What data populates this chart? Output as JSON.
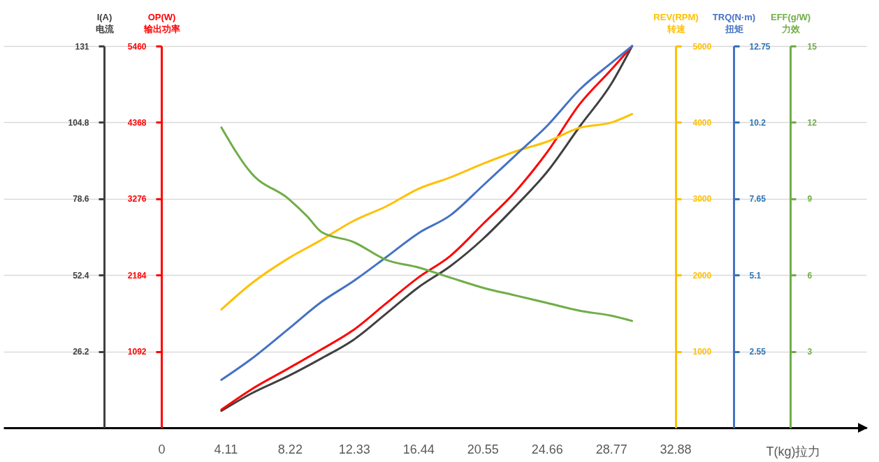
{
  "chart_data": [
    {
      "type": "line",
      "xlabel": "T(kg)拉力",
      "xlim": [
        -10.1,
        45.1
      ],
      "xticks": [
        0,
        4.11,
        8.22,
        12.33,
        16.44,
        20.55,
        24.66,
        28.77,
        32.88
      ],
      "x": [
        3.84,
        5.76,
        8.13,
        10.23,
        12.29,
        14.38,
        16.44,
        18.49,
        20.59,
        22.65,
        24.7,
        26.76,
        28.81,
        30.11
      ],
      "ylabel": "I(A)\n电流",
      "ylim": [
        0,
        131
      ],
      "yticks": [
        26.2,
        52.4,
        78.6,
        104.8,
        131
      ],
      "y2label": "OP(W)\n输出功率",
      "y2lim": [
        0,
        5460
      ],
      "y2ticks": [
        1092,
        2184,
        3276,
        4368,
        5460
      ],
      "y3label": "REV(RPM)\n转速",
      "y3lim": [
        0,
        5000
      ],
      "y3ticks": [
        1000,
        2000,
        3000,
        4000,
        5000
      ],
      "grid": "y",
      "series": [
        {
          "axis": "y",
          "color": "#404040",
          "values": [
            5.8,
            11.8,
            17.8,
            23.8,
            30.2,
            39.2,
            48.2,
            55.5,
            64.9,
            76.0,
            88.0,
            103.4,
            118.3,
            131
          ]
        },
        {
          "axis": "y2",
          "color": "#ff0000",
          "values": [
            260,
            550,
            850,
            1120,
            1400,
            1780,
            2150,
            2460,
            2920,
            3380,
            3950,
            4630,
            5130,
            5460
          ]
        },
        {
          "axis": "y3",
          "color": "#ffc000",
          "values": [
            1550,
            1890,
            2220,
            2460,
            2710,
            2900,
            3130,
            3280,
            3460,
            3620,
            3750,
            3930,
            4000,
            4110
          ]
        }
      ]
    },
    {
      "type": "line",
      "xlim": [
        -10.1,
        45.1
      ],
      "tick_labels": "y",
      "x": [
        3.84,
        5.76,
        8.13,
        10.23,
        12.29,
        14.38,
        16.44,
        18.49,
        20.59,
        22.65,
        24.7,
        26.76,
        28.81,
        30.11
      ],
      "ylabel": "TRQ(N·m)\n扭矩",
      "ylim": [
        0,
        12.75
      ],
      "yticks": [
        2.55,
        5.1,
        7.65,
        10.2,
        12.75
      ],
      "y2label": "EFF(g/W)\n力效",
      "y2lim": [
        0,
        15
      ],
      "y2ticks": [
        3,
        6,
        9,
        12,
        15
      ],
      "series": [
        {
          "axis": "y",
          "color": "#4472c4",
          "values": [
            1.6,
            2.3,
            3.3,
            4.2,
            4.9,
            5.7,
            6.5,
            7.1,
            8.1,
            9.1,
            10.1,
            11.3,
            12.2,
            12.75
          ]
        },
        {
          "axis": "y2",
          "color": "#70ad47",
          "x": [
            3.84,
            5.76,
            8.13,
            9.34,
            10.23,
            12.29,
            14.38,
            16.44,
            18.49,
            20.59,
            22.65,
            24.7,
            26.76,
            28.81,
            30.11
          ],
          "values": [
            11.8,
            10.0,
            9.0,
            8.3,
            7.7,
            7.3,
            6.6,
            6.3,
            5.9,
            5.5,
            5.2,
            4.9,
            4.6,
            4.4,
            4.2
          ]
        }
      ]
    }
  ]
}
